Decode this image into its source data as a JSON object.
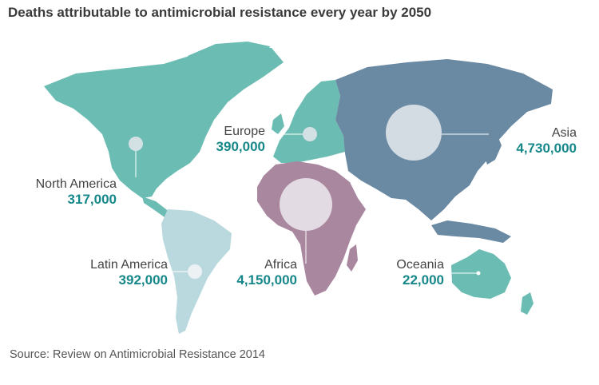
{
  "title": "Deaths attributable to antimicrobial resistance every year by 2050",
  "source": "Source: Review on Antimicrobial Resistance 2014",
  "colors": {
    "americas_north": "#6bbcb3",
    "latin_america": "#b9d9de",
    "europe": "#6bbcb3",
    "africa": "#a9879f",
    "asia": "#6a89a3",
    "oceania": "#6bbcb3",
    "value_text": "#17888a",
    "bubble": "#dfe4ea"
  },
  "chart_data": {
    "type": "map",
    "title": "Deaths attributable to antimicrobial resistance every year by 2050",
    "regions": [
      {
        "key": "north_america",
        "name": "North America",
        "value": "317,000",
        "deaths": 317000
      },
      {
        "key": "latin_america",
        "name": "Latin America",
        "value": "392,000",
        "deaths": 392000
      },
      {
        "key": "europe",
        "name": "Europe",
        "value": "390,000",
        "deaths": 390000
      },
      {
        "key": "africa",
        "name": "Africa",
        "value": "4,150,000",
        "deaths": 4150000
      },
      {
        "key": "asia",
        "name": "Asia",
        "value": "4,730,000",
        "deaths": 4730000
      },
      {
        "key": "oceania",
        "name": "Oceania",
        "value": "22,000",
        "deaths": 22000
      }
    ]
  }
}
